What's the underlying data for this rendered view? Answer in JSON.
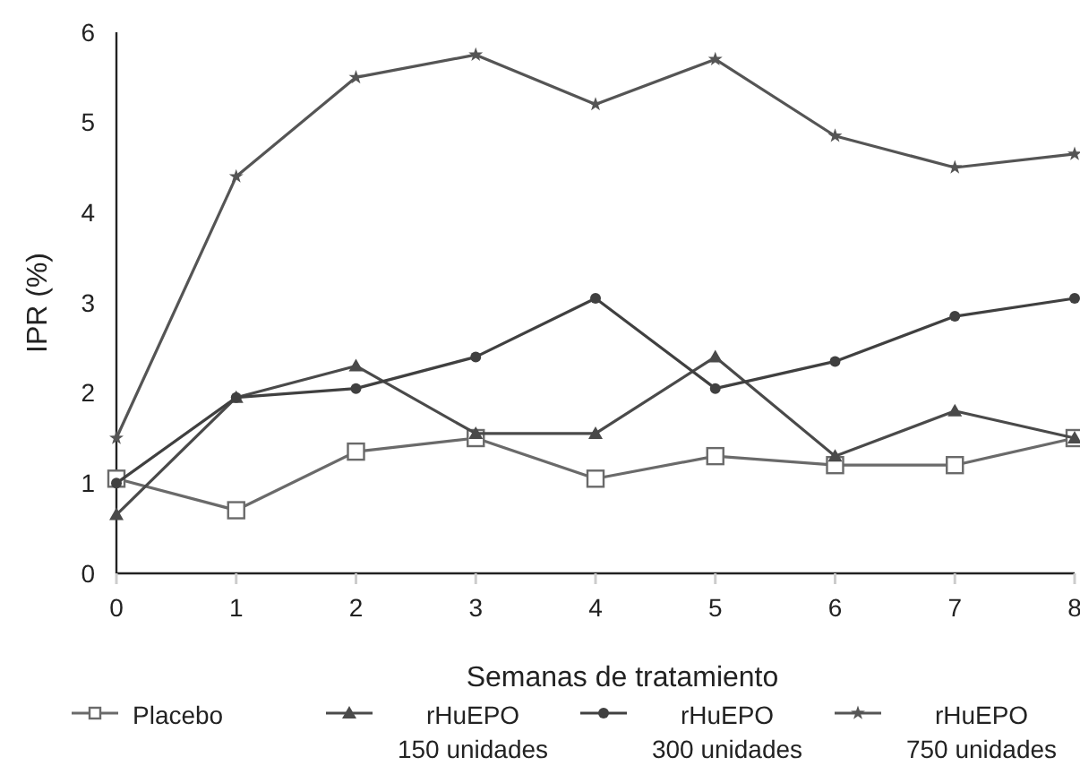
{
  "chart_data": {
    "type": "line",
    "xlabel": "Semanas de tratamiento",
    "ylabel": "IPR (%)",
    "x": [
      0,
      1,
      2,
      3,
      4,
      5,
      6,
      7,
      8
    ],
    "xlim": [
      0,
      8
    ],
    "xticks": [
      0,
      1,
      2,
      3,
      4,
      5,
      6,
      7,
      8
    ],
    "ylim": [
      0,
      6
    ],
    "yticks": [
      0,
      1,
      2,
      3,
      4,
      5,
      6
    ],
    "grid": false,
    "legend": "bottom",
    "line_style": "solid",
    "series": [
      {
        "name": "Placebo",
        "color": "#6a6a6a",
        "marker": "square",
        "values": [
          1.05,
          0.7,
          1.35,
          1.5,
          1.05,
          1.3,
          1.2,
          1.2,
          1.5
        ]
      },
      {
        "name": "rHuEPO\n150 unidades",
        "color": "#4a4a4a",
        "marker": "triangle",
        "values": [
          0.65,
          1.95,
          2.3,
          1.55,
          1.55,
          2.4,
          1.3,
          1.8,
          1.5
        ]
      },
      {
        "name": "rHuEPO\n300 unidades",
        "color": "#404040",
        "marker": "circle",
        "values": [
          1.0,
          1.95,
          2.05,
          2.4,
          3.05,
          2.05,
          2.35,
          2.85,
          3.05
        ]
      },
      {
        "name": "rHuEPO\n750 unidades",
        "color": "#555555",
        "marker": "star",
        "values": [
          1.5,
          4.4,
          5.5,
          5.75,
          5.2,
          5.7,
          4.85,
          4.5,
          4.65
        ]
      }
    ]
  }
}
